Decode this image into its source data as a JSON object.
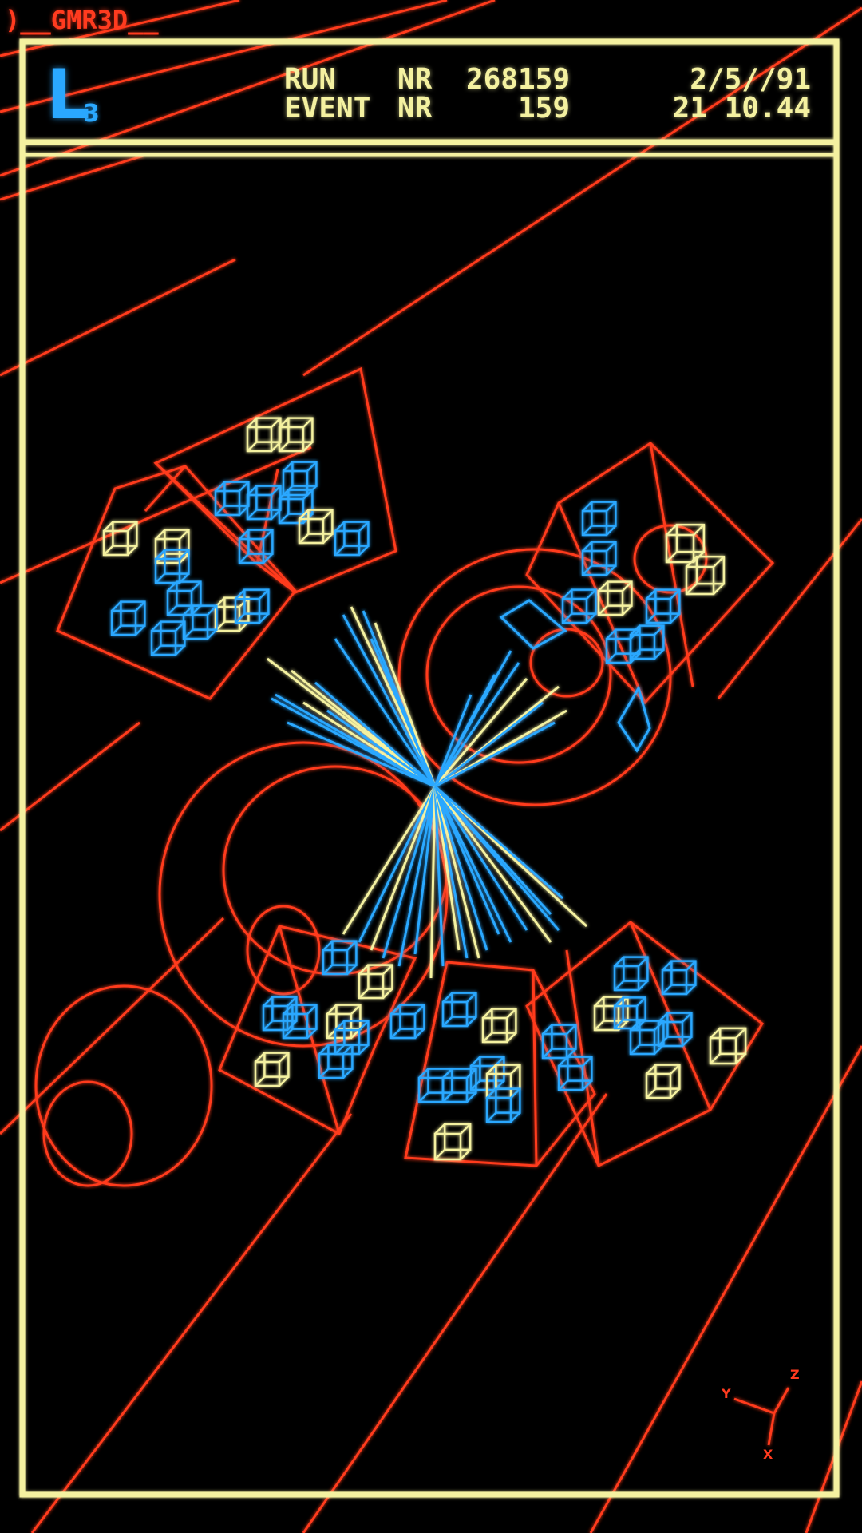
{
  "top_label": ")__GMR3D__",
  "logo": {
    "letter": "L",
    "subscript": "3"
  },
  "header": {
    "run_label": "RUN",
    "event_label": "EVENT",
    "nr_label": "NR",
    "run_number": "268159",
    "event_number": "159",
    "date": "2/5//91",
    "time": "21 10.44"
  },
  "axes": {
    "x": "X",
    "y": "Y",
    "z": "Z"
  },
  "colors": {
    "frame": "#f4f1a0",
    "detector": "#ff3b1f",
    "hit_blue": "#2aa8ff",
    "hit_yellow": "#f4f1a0"
  }
}
